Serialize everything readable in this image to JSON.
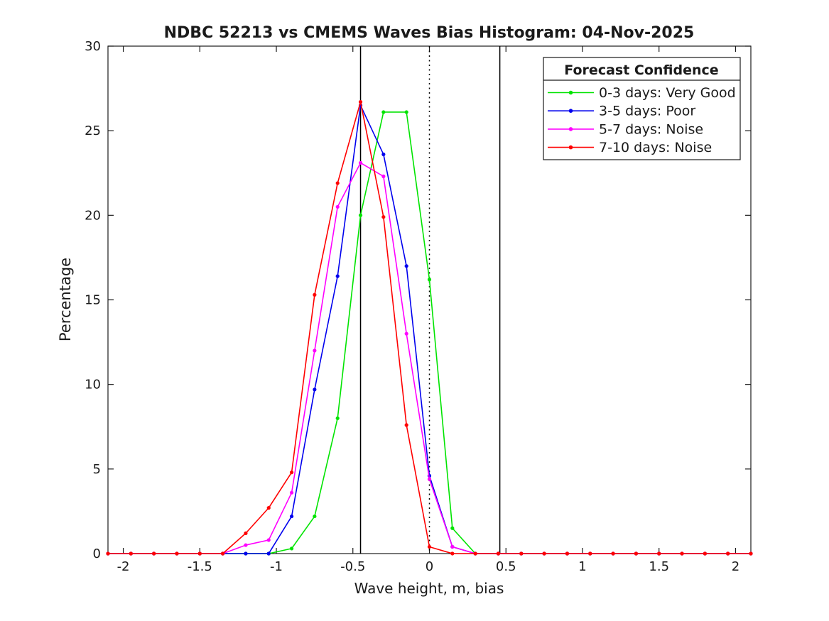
{
  "figure": {
    "background": "#ffffff",
    "frame_color": "#1a1a1a"
  },
  "chart_data": {
    "type": "line",
    "title": "NDBC 52213 vs CMEMS Waves Bias Histogram: 04-Nov-2025",
    "xlabel": "Wave height, m, bias",
    "ylabel": "Percentage",
    "xlim": [
      -2.1,
      2.1
    ],
    "ylim": [
      0,
      30
    ],
    "grid": false,
    "marker": "dot",
    "x_tick_values": [
      -2,
      -1.5,
      -1,
      -0.5,
      0,
      0.5,
      1,
      1.5,
      2
    ],
    "x_tick_labels": [
      "-2",
      "-1.5",
      "-1",
      "-0.5",
      "0",
      "0.5",
      "1",
      "1.5",
      "2"
    ],
    "y_tick_values": [
      0,
      5,
      10,
      15,
      20,
      25,
      30
    ],
    "y_tick_labels": [
      "0",
      "5",
      "10",
      "15",
      "20",
      "25",
      "30"
    ],
    "x": [
      -2.1,
      -1.95,
      -1.8,
      -1.65,
      -1.5,
      -1.35,
      -1.2,
      -1.05,
      -0.9,
      -0.75,
      -0.6,
      -0.45,
      -0.3,
      -0.15,
      0,
      0.15,
      0.3,
      0.45,
      0.6,
      0.75,
      0.9,
      1.05,
      1.2,
      1.35,
      1.5,
      1.65,
      1.8,
      1.95,
      2.1
    ],
    "series": [
      {
        "name": "0-3 days: Very Good",
        "color": "#00e400",
        "values": [
          0,
          0,
          0,
          0,
          0,
          0,
          0,
          0,
          0.3,
          2.2,
          8.0,
          20.0,
          26.1,
          26.1,
          16.2,
          1.5,
          0,
          0,
          0,
          0,
          0,
          0,
          0,
          0,
          0,
          0,
          0,
          0,
          0
        ]
      },
      {
        "name": "3-5 days: Poor",
        "color": "#0000ee",
        "values": [
          0,
          0,
          0,
          0,
          0,
          0,
          0,
          0,
          2.2,
          9.7,
          16.4,
          26.5,
          23.6,
          17.0,
          4.6,
          0.4,
          0,
          0,
          0,
          0,
          0,
          0,
          0,
          0,
          0,
          0,
          0,
          0,
          0
        ]
      },
      {
        "name": "5-7 days: Noise",
        "color": "#ff00ff",
        "values": [
          0,
          0,
          0,
          0,
          0,
          0,
          0.5,
          0.8,
          3.6,
          12.0,
          20.5,
          23.1,
          22.3,
          13.0,
          4.4,
          0.4,
          0,
          0,
          0,
          0,
          0,
          0,
          0,
          0,
          0,
          0,
          0,
          0,
          0
        ]
      },
      {
        "name": "7-10 days: Noise",
        "color": "#ff0000",
        "values": [
          0,
          0,
          0,
          0,
          0,
          0,
          1.2,
          2.7,
          4.8,
          15.3,
          21.9,
          26.7,
          19.9,
          7.6,
          0.4,
          0,
          0,
          0,
          0,
          0,
          0,
          0,
          0,
          0,
          0,
          0,
          0,
          0,
          0
        ]
      }
    ],
    "reference_lines": [
      {
        "x": -0.45,
        "style": "solid",
        "color": "#000000"
      },
      {
        "x": 0,
        "style": "dotted",
        "color": "#000000"
      },
      {
        "x": 0.46,
        "style": "solid",
        "color": "#000000"
      }
    ],
    "legend": {
      "title": "Forecast Confidence",
      "position": "top-right"
    }
  }
}
